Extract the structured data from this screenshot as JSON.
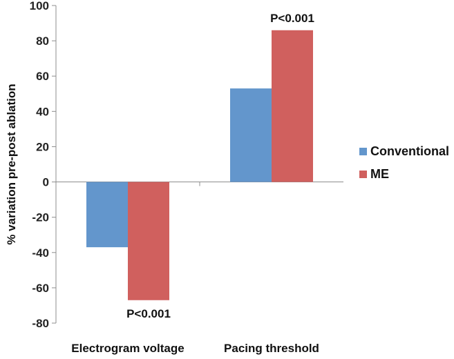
{
  "chart_data": {
    "type": "bar",
    "title": "",
    "xlabel": "",
    "ylabel": "% variation pre-post ablation",
    "categories": [
      "Electrogram voltage",
      "Pacing threshold"
    ],
    "series": [
      {
        "name": "Conventional",
        "color": "#6396CC",
        "values": [
          -37,
          53
        ]
      },
      {
        "name": "ME",
        "color": "#D0605E",
        "values": [
          -67,
          86
        ]
      }
    ],
    "ylim": [
      -80,
      100
    ],
    "yticks": [
      -80,
      -60,
      -40,
      -20,
      0,
      20,
      40,
      60,
      80,
      100
    ],
    "legend": "right",
    "grid": false,
    "annotations": [
      {
        "text": "P<0.001",
        "category": "Electrogram voltage",
        "series": "ME",
        "anchor": "below"
      },
      {
        "text": "P<0.001",
        "category": "Pacing threshold",
        "series": "ME",
        "anchor": "above"
      }
    ]
  }
}
